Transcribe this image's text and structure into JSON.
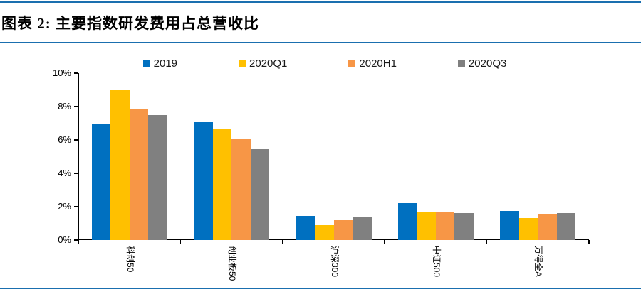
{
  "figure": {
    "title": "图表 2: 主要指数研发费用占总营收比"
  },
  "colors": {
    "rule_blue": "#1A6FAF",
    "axis": "#000000",
    "series_blue": "#0070C0",
    "series_yellow": "#FFC000",
    "series_orange": "#F79646",
    "series_gray": "#808080"
  },
  "chart_data": {
    "type": "bar",
    "title": "图表 2: 主要指数研发费用占总营收比",
    "categories": [
      "科创50",
      "创业板50",
      "沪深300",
      "中证500",
      "万得全A"
    ],
    "series": [
      {
        "name": "2019",
        "color": "#0070C0",
        "values": [
          7.0,
          7.05,
          1.45,
          2.2,
          1.75
        ]
      },
      {
        "name": "2020Q1",
        "color": "#FFC000",
        "values": [
          9.0,
          6.65,
          0.9,
          1.65,
          1.3
        ]
      },
      {
        "name": "2020H1",
        "color": "#F79646",
        "values": [
          7.85,
          6.05,
          1.2,
          1.7,
          1.55
        ]
      },
      {
        "name": "2020Q3",
        "color": "#808080",
        "values": [
          7.5,
          5.45,
          1.35,
          1.6,
          1.6
        ]
      }
    ],
    "xlabel": "",
    "ylabel": "",
    "y_ticks": [
      "0%",
      "2%",
      "4%",
      "6%",
      "8%",
      "10%"
    ],
    "ylim": [
      0,
      10
    ],
    "grid": false,
    "legend_position": "top",
    "bar_orientation": "vertical"
  }
}
